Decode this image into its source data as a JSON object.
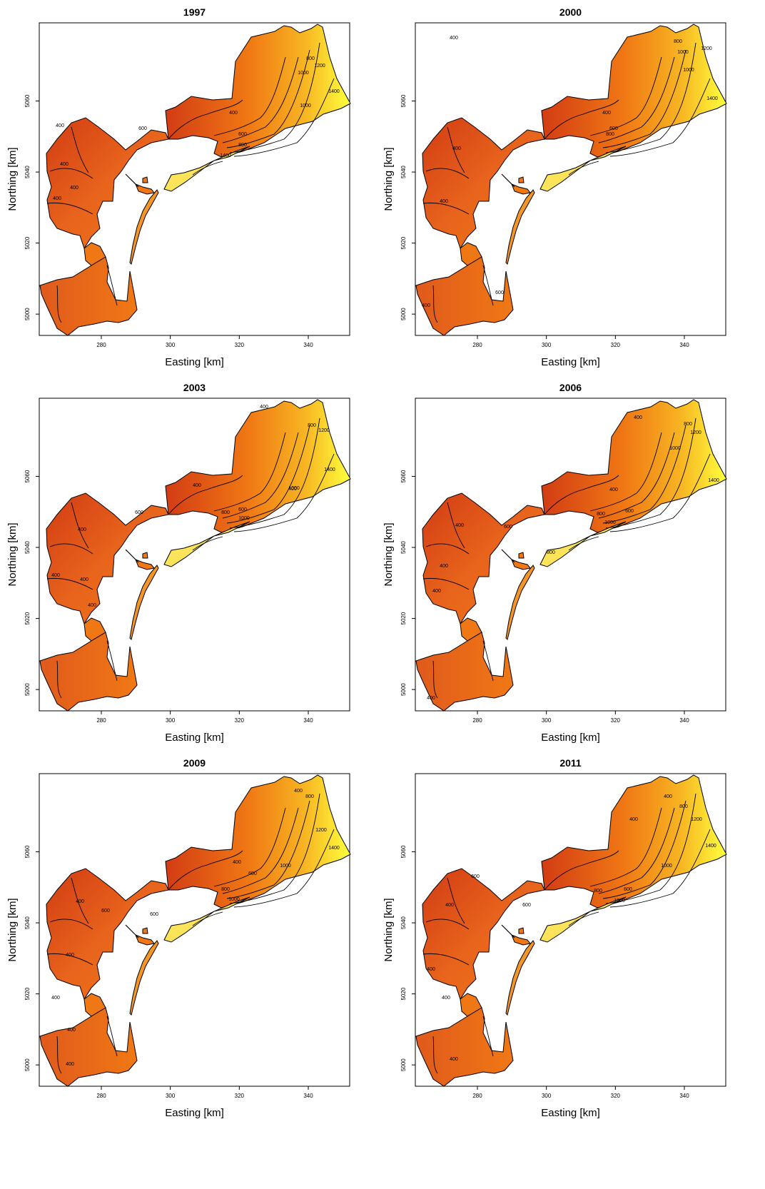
{
  "figure": {
    "xlabel": "Easting [km]",
    "ylabel": "Northing [km]",
    "xticks": [
      "280",
      "300",
      "320",
      "340"
    ],
    "yticks": [
      "5000",
      "5020",
      "5040",
      "5060"
    ]
  },
  "colors": {
    "low": "#d23c14",
    "mid": "#f07814",
    "high": "#ffff3c",
    "contour": "#000000"
  },
  "chart_data": [
    {
      "type": "heatmap",
      "title": "1997",
      "xlabel": "Easting [km]",
      "ylabel": "Northing [km]",
      "xlim": [
        262,
        352
      ],
      "ylim": [
        4994,
        5082
      ],
      "grid": false,
      "contour_levels": [
        400,
        600,
        800,
        1000,
        1200,
        1400
      ],
      "contour_labels": [
        "400",
        "400",
        "400",
        "400",
        "400",
        "600",
        "600",
        "800",
        "800",
        "1000",
        "1000",
        "1200",
        "1400",
        "1400"
      ]
    },
    {
      "type": "heatmap",
      "title": "2000",
      "xlabel": "Easting [km]",
      "ylabel": "Northing [km]",
      "xlim": [
        262,
        352
      ],
      "ylim": [
        4994,
        5082
      ],
      "grid": false,
      "contour_levels": [
        400,
        600,
        800,
        1000,
        1200,
        1400
      ],
      "contour_labels": [
        "400",
        "400",
        "400",
        "400",
        "400",
        "600",
        "600",
        "800",
        "800",
        "1000",
        "1000",
        "1200",
        "1400"
      ]
    },
    {
      "type": "heatmap",
      "title": "2003",
      "xlabel": "Easting [km]",
      "ylabel": "Northing [km]",
      "xlim": [
        262,
        352
      ],
      "ylim": [
        4994,
        5082
      ],
      "grid": false,
      "contour_levels": [
        400,
        600,
        800,
        1000,
        1200,
        1400
      ],
      "contour_labels": [
        "400",
        "400",
        "400",
        "400",
        "400",
        "400",
        "400",
        "600",
        "600",
        "800",
        "800",
        "1000",
        "1000",
        "1200",
        "1400"
      ]
    },
    {
      "type": "heatmap",
      "title": "2006",
      "xlabel": "Easting [km]",
      "ylabel": "Northing [km]",
      "xlim": [
        262,
        352
      ],
      "ylim": [
        4994,
        5082
      ],
      "grid": false,
      "contour_levels": [
        400,
        600,
        800,
        1000,
        1200,
        1400
      ],
      "contour_labels": [
        "400",
        "400",
        "400",
        "400",
        "400",
        "400",
        "600",
        "600",
        "800",
        "800",
        "800",
        "1000",
        "1000",
        "1200",
        "1400"
      ]
    },
    {
      "type": "heatmap",
      "title": "2009",
      "xlabel": "Easting [km]",
      "ylabel": "Northing [km]",
      "xlim": [
        262,
        352
      ],
      "ylim": [
        4994,
        5082
      ],
      "grid": false,
      "contour_levels": [
        400,
        600,
        800,
        1000,
        1200,
        1400
      ],
      "contour_labels": [
        "400",
        "400",
        "400",
        "400",
        "400",
        "400",
        "400",
        "600",
        "600",
        "600",
        "800",
        "800",
        "1000",
        "1000",
        "1200",
        "1400"
      ]
    },
    {
      "type": "heatmap",
      "title": "2011",
      "xlabel": "Easting [km]",
      "ylabel": "Northing [km]",
      "xlim": [
        262,
        352
      ],
      "ylim": [
        4994,
        5082
      ],
      "grid": false,
      "contour_levels": [
        400,
        600,
        800,
        1000,
        1200,
        1400
      ],
      "contour_labels": [
        "400",
        "400",
        "400",
        "400",
        "400",
        "400",
        "600",
        "600",
        "600",
        "800",
        "800",
        "1000",
        "1000",
        "1200",
        "1400"
      ]
    }
  ]
}
